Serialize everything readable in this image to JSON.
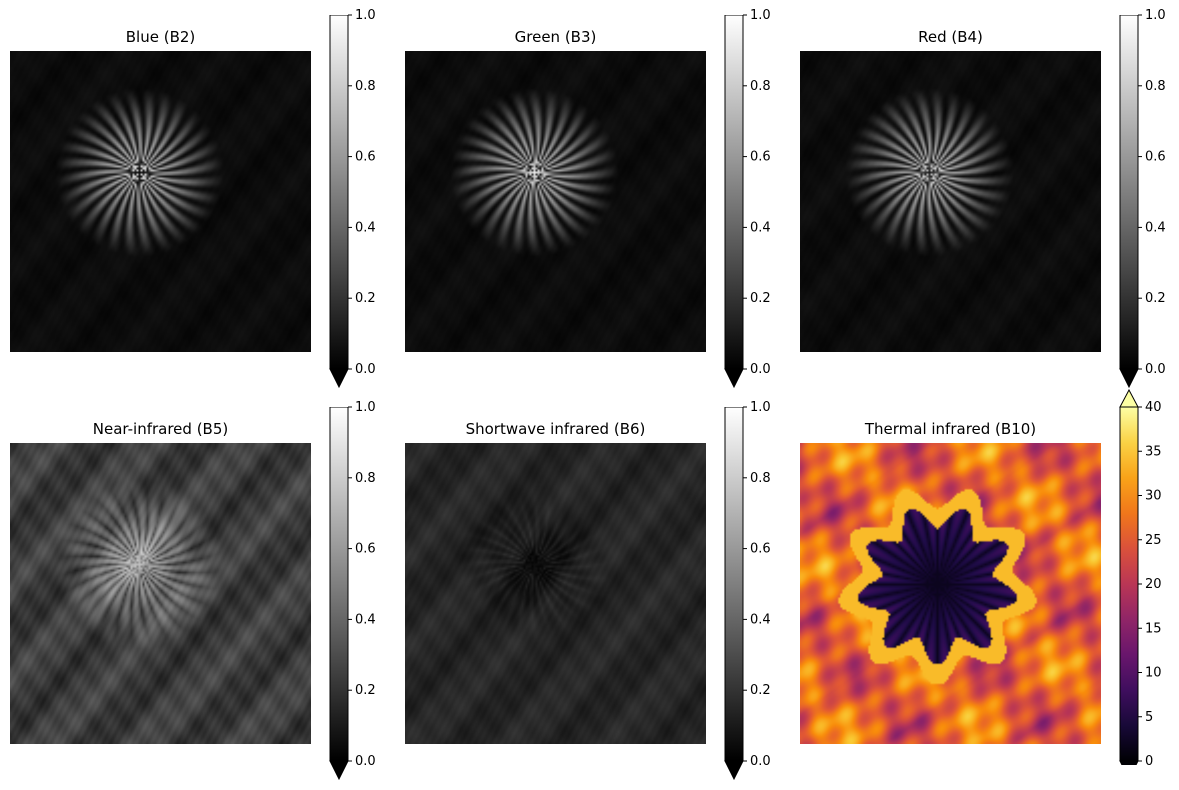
{
  "figure": {
    "panels": [
      {
        "title": "Blue (B2)",
        "colormap": "gray",
        "colorbar": {
          "min": 0,
          "max": 1,
          "ticks": [
            "0.0",
            "0.2",
            "0.4",
            "0.6",
            "0.8",
            "1.0"
          ],
          "extend": "min"
        }
      },
      {
        "title": "Green (B3)",
        "colormap": "gray",
        "colorbar": {
          "min": 0,
          "max": 1,
          "ticks": [
            "0.0",
            "0.2",
            "0.4",
            "0.6",
            "0.8",
            "1.0"
          ],
          "extend": "min"
        }
      },
      {
        "title": "Red (B4)",
        "colormap": "gray",
        "colorbar": {
          "min": 0,
          "max": 1,
          "ticks": [
            "0.0",
            "0.2",
            "0.4",
            "0.6",
            "0.8",
            "1.0"
          ],
          "extend": "min"
        }
      },
      {
        "title": "Near-infrared (B5)",
        "colormap": "gray",
        "colorbar": {
          "min": 0,
          "max": 1,
          "ticks": [
            "0.0",
            "0.2",
            "0.4",
            "0.6",
            "0.8",
            "1.0"
          ],
          "extend": "min"
        }
      },
      {
        "title": "Shortwave infrared (B6)",
        "colormap": "gray",
        "colorbar": {
          "min": 0,
          "max": 1,
          "ticks": [
            "0.0",
            "0.2",
            "0.4",
            "0.6",
            "0.8",
            "1.0"
          ],
          "extend": "min"
        }
      },
      {
        "title": "Thermal infrared (B10)",
        "colormap": "inferno",
        "colorbar": {
          "min": 0,
          "max": 40,
          "ticks": [
            "0",
            "5",
            "10",
            "15",
            "20",
            "25",
            "30",
            "35",
            "40"
          ],
          "extend": "both"
        }
      }
    ]
  }
}
